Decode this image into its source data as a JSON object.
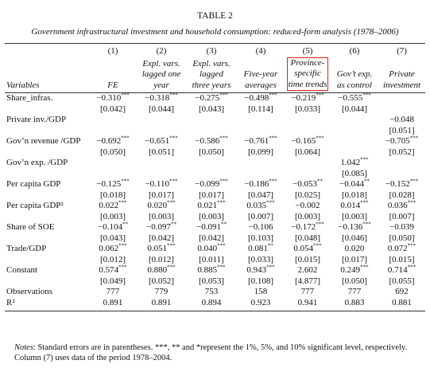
{
  "title": "TABLE 2",
  "subtitle": "Government infrastructural investment and household consumption: reduced-form analysis (1978–2006)",
  "columns": [
    "(1)",
    "(2)",
    "(3)",
    "(4)",
    "(5)",
    "(6)",
    "(7)"
  ],
  "variables_header": "Variables",
  "column_headers": [
    [
      "FE"
    ],
    [
      "Expl. vars.",
      "lagged one",
      "year"
    ],
    [
      "Expl. vars.",
      "lagged",
      "three years"
    ],
    [
      "Five-year",
      "averages"
    ],
    [
      "Province-",
      "specific",
      "time trends"
    ],
    [
      "Gov’t exp.",
      "as control"
    ],
    [
      "Private",
      "investment"
    ]
  ],
  "rows": [
    {
      "label": "Share_infras.",
      "cells": [
        {
          "coef": "−0.310",
          "stars": "***",
          "se": "[0.042]"
        },
        {
          "coef": "−0.318",
          "stars": "***",
          "se": "[0.044]"
        },
        {
          "coef": "−0.275",
          "stars": "***",
          "se": "[0.043]"
        },
        {
          "coef": "−0.498",
          "stars": "***",
          "se": "[0.114]"
        },
        {
          "coef": "−0.219",
          "stars": "***",
          "se": "[0.033]"
        },
        {
          "coef": "−0.555",
          "stars": "***",
          "se": "[0.044]"
        },
        null
      ]
    },
    {
      "label": "Private inv./GDP",
      "cells": [
        null,
        null,
        null,
        null,
        null,
        null,
        {
          "coef": "−0.048",
          "se": "[0.051]"
        }
      ]
    },
    {
      "label": "Gov’n revenue /GDP",
      "cells": [
        {
          "coef": "−0.692",
          "stars": "***",
          "se": "[0.050]"
        },
        {
          "coef": "−0.651",
          "stars": "***",
          "se": "[0.051]"
        },
        {
          "coef": "−0.586",
          "stars": "***",
          "se": "[0.050]"
        },
        {
          "coef": "−0.761",
          "stars": "***",
          "se": "[0.099]"
        },
        {
          "coef": "−0.165",
          "stars": "***",
          "se": "[0.064]"
        },
        null,
        {
          "coef": "−0.705",
          "stars": "***",
          "se": "[0.052]"
        }
      ]
    },
    {
      "label": "Gov’n exp. /GDP",
      "cells": [
        null,
        null,
        null,
        null,
        null,
        {
          "coef": "1.042",
          "stars": "***",
          "se": "[0.085]"
        },
        null
      ]
    },
    {
      "label": "Per capita GDP",
      "cells": [
        {
          "coef": "−0.125",
          "stars": "***",
          "se": "[0.018]"
        },
        {
          "coef": "−0.110",
          "stars": "***",
          "se": "[0.017]"
        },
        {
          "coef": "−0.099",
          "stars": "***",
          "se": "[0.017]"
        },
        {
          "coef": "−0.186",
          "stars": "***",
          "se": "[0.047]"
        },
        {
          "coef": "−0.053",
          "stars": "**",
          "se": "[0.025]"
        },
        {
          "coef": "−0.044",
          "stars": "**",
          "se": "[0.018]"
        },
        {
          "coef": "−0.152",
          "stars": "***",
          "se": "[0.028]"
        }
      ]
    },
    {
      "label": "Per capita GDP²",
      "cells": [
        {
          "coef": "0.022",
          "stars": "***",
          "se": "[0.003]"
        },
        {
          "coef": "0.020",
          "stars": "***",
          "se": "[0.003]"
        },
        {
          "coef": "0.021",
          "stars": "***",
          "se": "[0.003]"
        },
        {
          "coef": "0.035",
          "stars": "***",
          "se": "[0.007]"
        },
        {
          "coef": "−0.002",
          "se": "[0.003]"
        },
        {
          "coef": "0.014",
          "stars": "***",
          "se": "[0.003]"
        },
        {
          "coef": "0.036",
          "stars": "***",
          "se": "[0.007]"
        }
      ]
    },
    {
      "label": "Share of SOE",
      "cells": [
        {
          "coef": "−0.104",
          "stars": "**",
          "se": "[0.043]"
        },
        {
          "coef": "−0.097",
          "stars": "**",
          "se": "[0.042]"
        },
        {
          "coef": "−0.091",
          "stars": "**",
          "se": "[0.042]"
        },
        {
          "coef": "−0.106",
          "se": "[0.103]"
        },
        {
          "coef": "−0.172",
          "stars": "***",
          "se": "[0.048]"
        },
        {
          "coef": "−0.136",
          "stars": "***",
          "se": "[0.046]"
        },
        {
          "coef": "−0.039",
          "se": "[0.050]"
        }
      ]
    },
    {
      "label": "Trade/GDP",
      "cells": [
        {
          "coef": "0.062",
          "stars": "***",
          "se": "[0.012]"
        },
        {
          "coef": "0.051",
          "stars": "***",
          "se": "[0.012]"
        },
        {
          "coef": "0.040",
          "stars": "***",
          "se": "[0.011]"
        },
        {
          "coef": "0.081",
          "stars": "**",
          "se": "[0.033]"
        },
        {
          "coef": "0.054",
          "stars": "***",
          "se": "[0.015]"
        },
        {
          "coef": "0.020",
          "se": "[0.017]"
        },
        {
          "coef": "0.072",
          "stars": "***",
          "se": "[0.015]"
        }
      ]
    },
    {
      "label": "Constant",
      "cells": [
        {
          "coef": "0.574",
          "stars": "***",
          "se": "[0.049]"
        },
        {
          "coef": "0.880",
          "stars": "***",
          "se": "[0.052]"
        },
        {
          "coef": "0.885",
          "stars": "***",
          "se": "[0.053]"
        },
        {
          "coef": "0.943",
          "stars": "***",
          "se": "[0.108]"
        },
        {
          "coef": "2.602",
          "se": "[4.877]"
        },
        {
          "coef": "0.249",
          "stars": "***",
          "se": "[0.050]"
        },
        {
          "coef": "0.714",
          "stars": "***",
          "se": "[0.055]"
        }
      ]
    }
  ],
  "stats": [
    {
      "label": "Observations",
      "values": [
        "777",
        "779",
        "753",
        "158",
        "777",
        "777",
        "692"
      ]
    },
    {
      "label": "R²",
      "values": [
        "0.891",
        "0.891",
        "0.894",
        "0.923",
        "0.941",
        "0.883",
        "0.881"
      ]
    }
  ],
  "notes_label": "Notes",
  "notes": ": Standard errors are in parentheses. ***, ** and *represent the 1%, 5%, and 10% significant level, respectively. Column (7) uses data of the period 1978–2004."
}
